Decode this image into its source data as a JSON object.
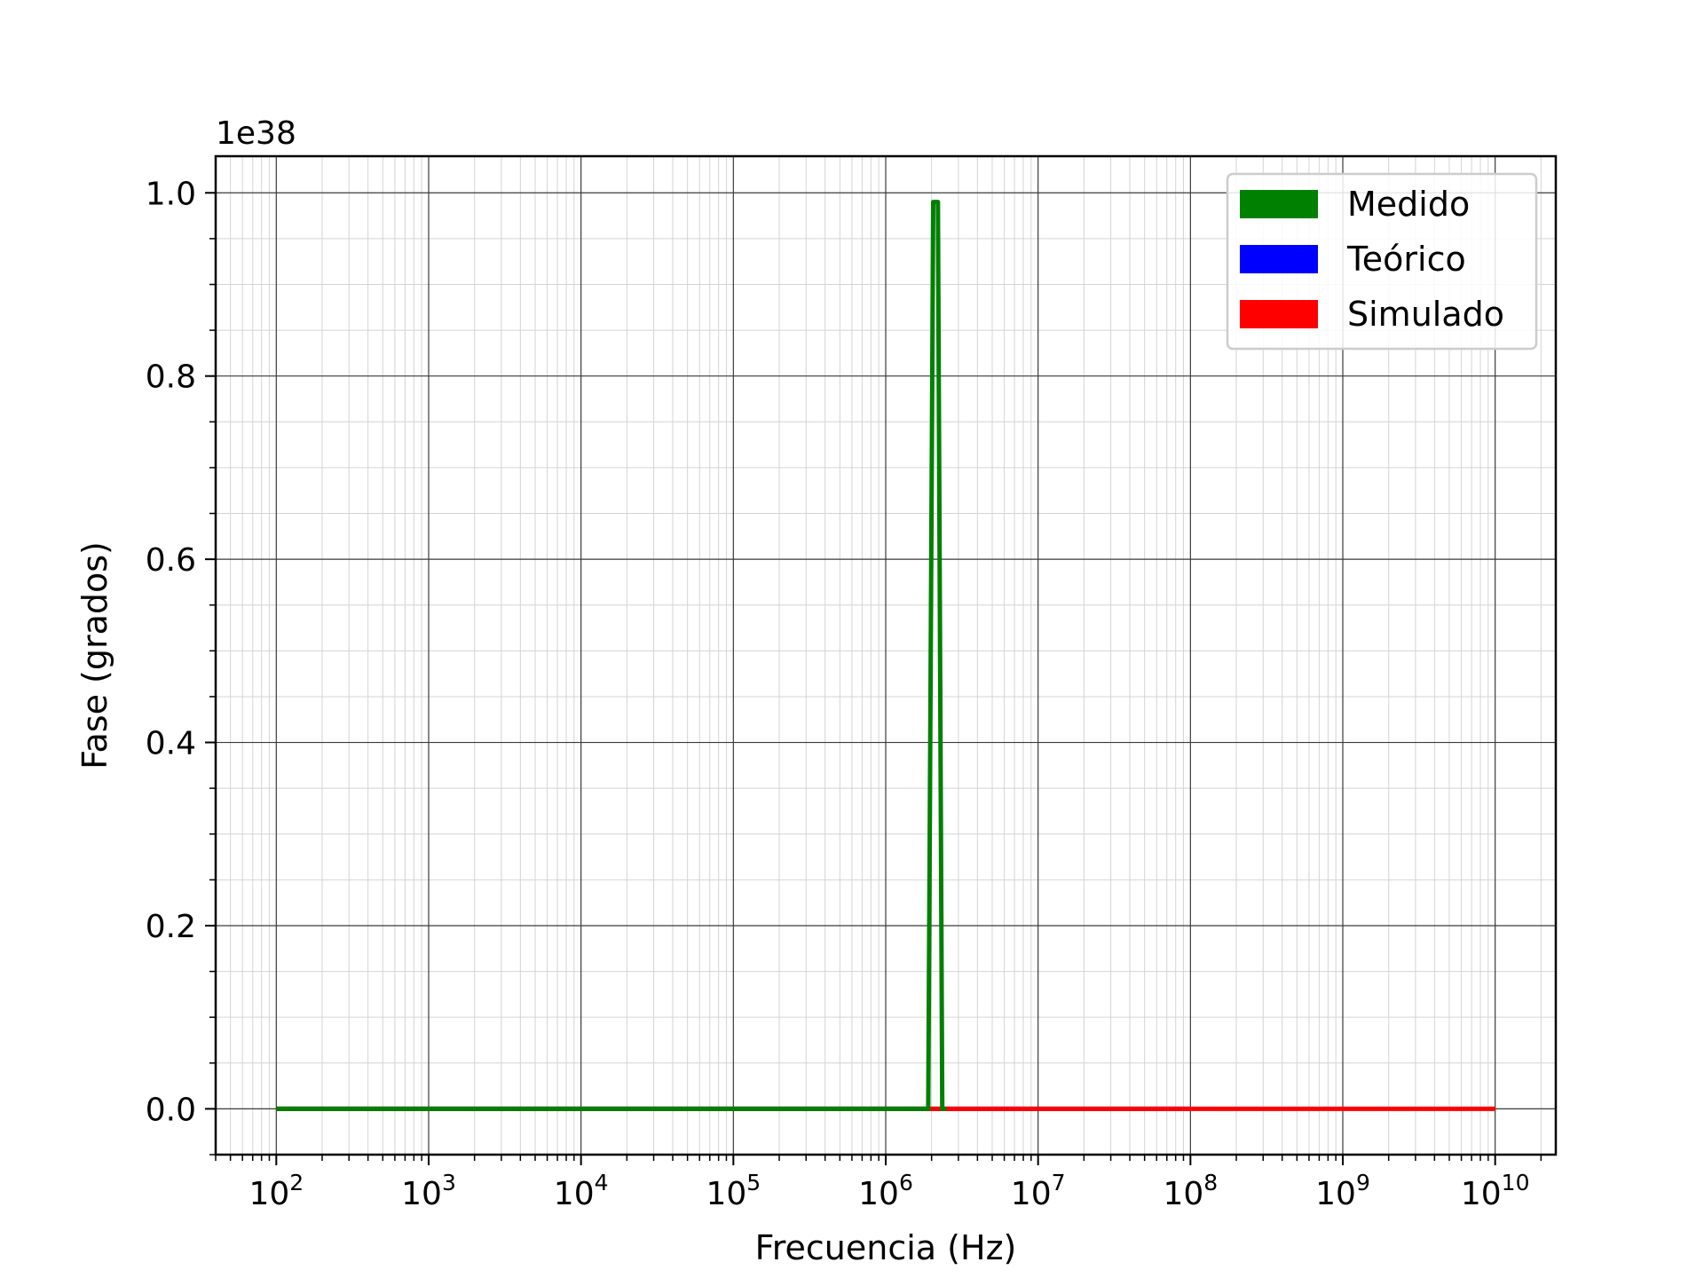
{
  "chart_data": {
    "type": "line",
    "title": "",
    "xlabel": "Frecuencia (Hz)",
    "ylabel": "Fase (grados)",
    "x_scale": "log",
    "xlim": [
      40,
      25000000000
    ],
    "ylim": [
      -5e+36,
      1.04e+38
    ],
    "y_offset_label": "1e38",
    "x_tick_exponents": [
      "2",
      "3",
      "4",
      "5",
      "6",
      "7",
      "8",
      "9",
      "10"
    ],
    "y_tick_labels": [
      "0.0",
      "0.2",
      "0.4",
      "0.6",
      "0.8",
      "1.0"
    ],
    "y_tick_values": [
      0,
      2e+37,
      4e+37,
      6e+37,
      8e+37,
      1e+38
    ],
    "grid": true,
    "legend_position": "top-right",
    "series": [
      {
        "name": "Teórico",
        "color": "#0000ff",
        "x": [
          100,
          1000,
          10000,
          100000,
          1000000,
          10000000,
          100000000
        ],
        "y": [
          0,
          0,
          0,
          0,
          0,
          0,
          0
        ]
      },
      {
        "name": "Simulado",
        "color": "#ff0000",
        "x": [
          100,
          1000,
          10000,
          100000,
          1000000,
          10000000,
          100000000,
          1000000000,
          10000000000
        ],
        "y": [
          0,
          0,
          0,
          0,
          0,
          0,
          0,
          0,
          0
        ]
      },
      {
        "name": "Medido",
        "color": "#008000",
        "x": [
          100,
          1000,
          10000,
          100000,
          1000000,
          1900000,
          2050000,
          2200000,
          2350000,
          2500000
        ],
        "y": [
          0,
          0,
          0,
          0,
          0,
          0,
          9.9e+37,
          9.9e+37,
          0,
          0
        ]
      }
    ],
    "legend_order": [
      "Medido",
      "Teórico",
      "Simulado"
    ]
  }
}
